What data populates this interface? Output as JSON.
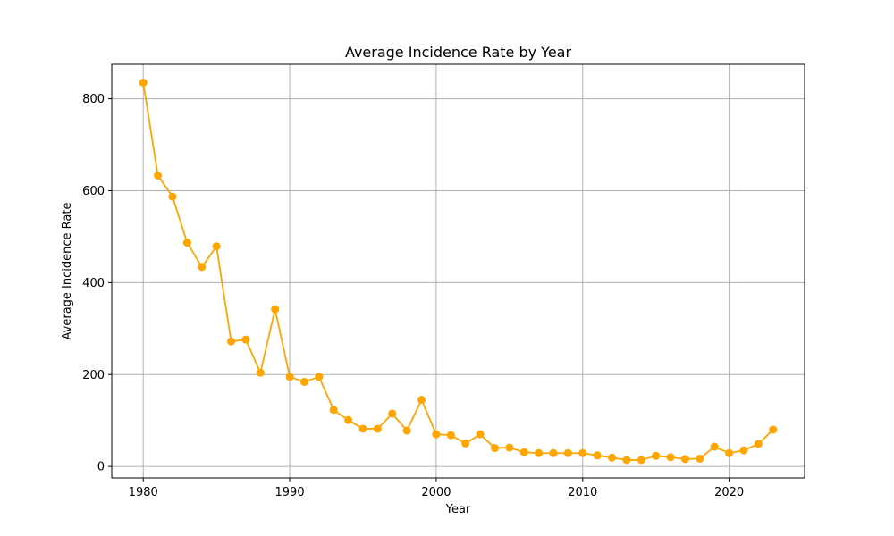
{
  "chart_data": {
    "type": "line",
    "title": "Average Incidence Rate by Year",
    "xlabel": "Year",
    "ylabel": "Average Incidence Rate",
    "xlim": [
      1977.85,
      2025.15
    ],
    "ylim": [
      -25,
      875
    ],
    "x_ticks": [
      1980,
      1990,
      2000,
      2010,
      2020
    ],
    "y_ticks": [
      0,
      200,
      400,
      600,
      800
    ],
    "grid": true,
    "line_color": "#FFA500",
    "x": [
      1980,
      1981,
      1982,
      1983,
      1984,
      1985,
      1986,
      1987,
      1988,
      1989,
      1990,
      1991,
      1992,
      1993,
      1994,
      1995,
      1996,
      1997,
      1998,
      1999,
      2000,
      2001,
      2002,
      2003,
      2004,
      2005,
      2006,
      2007,
      2008,
      2009,
      2010,
      2011,
      2012,
      2013,
      2014,
      2015,
      2016,
      2017,
      2018,
      2019,
      2020,
      2021,
      2022,
      2023
    ],
    "values": [
      835,
      633,
      587,
      487,
      434,
      479,
      272,
      276,
      204,
      342,
      195,
      184,
      195,
      123,
      101,
      82,
      82,
      115,
      78,
      145,
      70,
      68,
      50,
      70,
      40,
      41,
      31,
      29,
      29,
      29,
      29,
      24,
      19,
      14,
      14,
      23,
      20,
      16,
      17,
      43,
      29,
      35,
      49,
      80
    ]
  }
}
